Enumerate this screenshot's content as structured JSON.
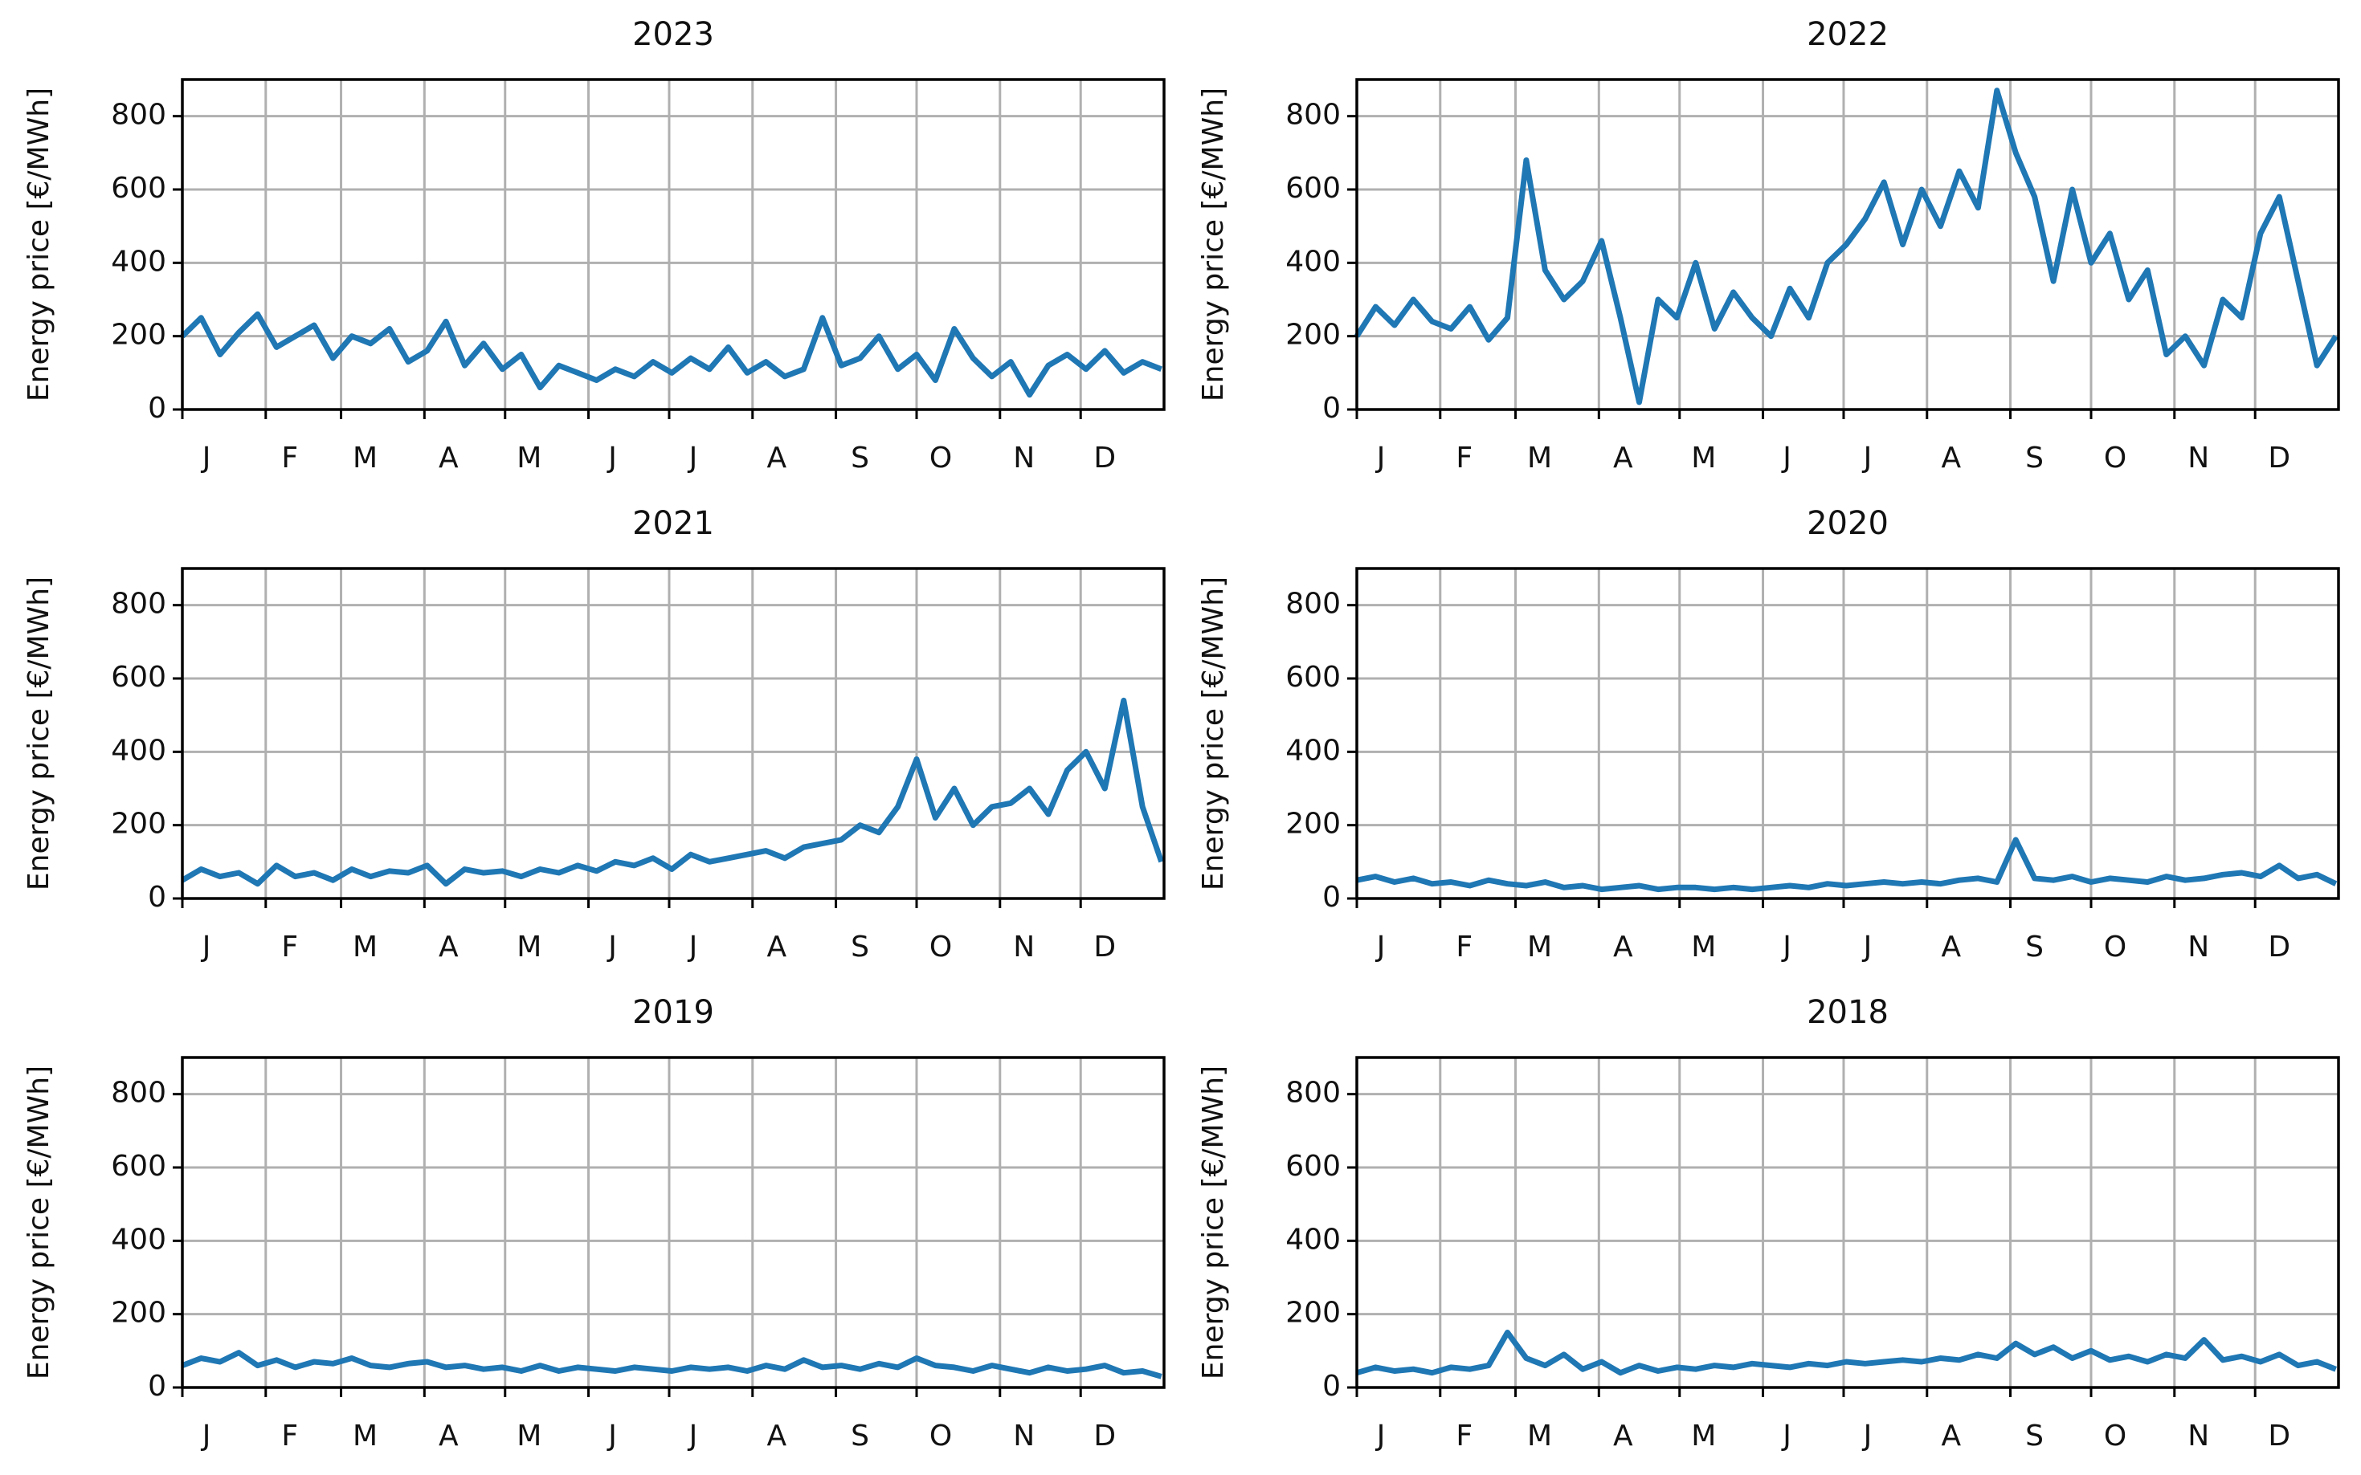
{
  "chart_data": [
    {
      "type": "line",
      "title": "2023",
      "ylabel": "Energy price [€/MWh]",
      "x": [
        1,
        8,
        15,
        22,
        29,
        36,
        43,
        50,
        57,
        64,
        71,
        78,
        85,
        92,
        99,
        106,
        113,
        120,
        127,
        134,
        141,
        148,
        155,
        162,
        169,
        176,
        183,
        190,
        197,
        204,
        211,
        218,
        225,
        232,
        239,
        246,
        253,
        260,
        267,
        274,
        281,
        288,
        295,
        302,
        309,
        316,
        323,
        330,
        337,
        344,
        351,
        358,
        365
      ],
      "series": [
        {
          "color": "#1f77b4",
          "values": [
            200,
            250,
            150,
            210,
            260,
            170,
            200,
            230,
            140,
            200,
            180,
            220,
            130,
            160,
            240,
            120,
            180,
            110,
            150,
            60,
            120,
            100,
            80,
            110,
            90,
            130,
            100,
            140,
            110,
            170,
            100,
            130,
            90,
            110,
            250,
            120,
            140,
            200,
            110,
            150,
            80,
            220,
            140,
            90,
            130,
            40,
            120,
            150,
            110,
            160,
            100,
            130,
            110
          ]
        }
      ],
      "xlim": [
        1,
        366
      ],
      "xticks": [
        {
          "value": 1,
          "label": "J"
        },
        {
          "value": 32,
          "label": "F"
        },
        {
          "value": 60,
          "label": "M"
        },
        {
          "value": 91,
          "label": "A"
        },
        {
          "value": 121,
          "label": "M"
        },
        {
          "value": 152,
          "label": "J"
        },
        {
          "value": 182,
          "label": "J"
        },
        {
          "value": 213,
          "label": "A"
        },
        {
          "value": 244,
          "label": "S"
        },
        {
          "value": 274,
          "label": "O"
        },
        {
          "value": 305,
          "label": "N"
        },
        {
          "value": 335,
          "label": "D"
        }
      ],
      "ylim": [
        0,
        900
      ],
      "yticks": [
        0,
        200,
        400,
        600,
        800
      ],
      "grid": true
    },
    {
      "type": "line",
      "title": "2022",
      "ylabel": "Energy price [€/MWh]",
      "x": [
        1,
        8,
        15,
        22,
        29,
        36,
        43,
        50,
        57,
        64,
        71,
        78,
        85,
        92,
        99,
        106,
        113,
        120,
        127,
        134,
        141,
        148,
        155,
        162,
        169,
        176,
        183,
        190,
        197,
        204,
        211,
        218,
        225,
        232,
        239,
        246,
        253,
        260,
        267,
        274,
        281,
        288,
        295,
        302,
        309,
        316,
        323,
        330,
        337,
        344,
        351,
        358,
        365
      ],
      "series": [
        {
          "color": "#1f77b4",
          "values": [
            200,
            280,
            230,
            300,
            240,
            220,
            280,
            190,
            250,
            680,
            380,
            300,
            350,
            460,
            250,
            20,
            300,
            250,
            400,
            220,
            320,
            250,
            200,
            330,
            250,
            400,
            450,
            520,
            620,
            450,
            600,
            500,
            650,
            550,
            870,
            700,
            580,
            350,
            600,
            400,
            480,
            300,
            380,
            150,
            200,
            120,
            300,
            250,
            480,
            580,
            350,
            120,
            200
          ]
        }
      ],
      "xlim": [
        1,
        366
      ],
      "xticks": [
        {
          "value": 1,
          "label": "J"
        },
        {
          "value": 32,
          "label": "F"
        },
        {
          "value": 60,
          "label": "M"
        },
        {
          "value": 91,
          "label": "A"
        },
        {
          "value": 121,
          "label": "M"
        },
        {
          "value": 152,
          "label": "J"
        },
        {
          "value": 182,
          "label": "J"
        },
        {
          "value": 213,
          "label": "A"
        },
        {
          "value": 244,
          "label": "S"
        },
        {
          "value": 274,
          "label": "O"
        },
        {
          "value": 305,
          "label": "N"
        },
        {
          "value": 335,
          "label": "D"
        }
      ],
      "ylim": [
        0,
        900
      ],
      "yticks": [
        0,
        200,
        400,
        600,
        800
      ],
      "grid": true
    },
    {
      "type": "line",
      "title": "2021",
      "ylabel": "Energy price [€/MWh]",
      "x": [
        1,
        8,
        15,
        22,
        29,
        36,
        43,
        50,
        57,
        64,
        71,
        78,
        85,
        92,
        99,
        106,
        113,
        120,
        127,
        134,
        141,
        148,
        155,
        162,
        169,
        176,
        183,
        190,
        197,
        204,
        211,
        218,
        225,
        232,
        239,
        246,
        253,
        260,
        267,
        274,
        281,
        288,
        295,
        302,
        309,
        316,
        323,
        330,
        337,
        344,
        351,
        358,
        365
      ],
      "series": [
        {
          "color": "#1f77b4",
          "values": [
            50,
            80,
            60,
            70,
            40,
            90,
            60,
            70,
            50,
            80,
            60,
            75,
            70,
            90,
            40,
            80,
            70,
            75,
            60,
            80,
            70,
            90,
            75,
            100,
            90,
            110,
            80,
            120,
            100,
            110,
            120,
            130,
            110,
            140,
            150,
            160,
            200,
            180,
            250,
            380,
            220,
            300,
            200,
            250,
            260,
            300,
            230,
            350,
            400,
            300,
            540,
            250,
            100
          ]
        }
      ],
      "xlim": [
        1,
        366
      ],
      "xticks": [
        {
          "value": 1,
          "label": "J"
        },
        {
          "value": 32,
          "label": "F"
        },
        {
          "value": 60,
          "label": "M"
        },
        {
          "value": 91,
          "label": "A"
        },
        {
          "value": 121,
          "label": "M"
        },
        {
          "value": 152,
          "label": "J"
        },
        {
          "value": 182,
          "label": "J"
        },
        {
          "value": 213,
          "label": "A"
        },
        {
          "value": 244,
          "label": "S"
        },
        {
          "value": 274,
          "label": "O"
        },
        {
          "value": 305,
          "label": "N"
        },
        {
          "value": 335,
          "label": "D"
        }
      ],
      "ylim": [
        0,
        900
      ],
      "yticks": [
        0,
        200,
        400,
        600,
        800
      ],
      "grid": true
    },
    {
      "type": "line",
      "title": "2020",
      "ylabel": "Energy price [€/MWh]",
      "x": [
        1,
        8,
        15,
        22,
        29,
        36,
        43,
        50,
        57,
        64,
        71,
        78,
        85,
        92,
        99,
        106,
        113,
        120,
        127,
        134,
        141,
        148,
        155,
        162,
        169,
        176,
        183,
        190,
        197,
        204,
        211,
        218,
        225,
        232,
        239,
        246,
        253,
        260,
        267,
        274,
        281,
        288,
        295,
        302,
        309,
        316,
        323,
        330,
        337,
        344,
        351,
        358,
        365
      ],
      "series": [
        {
          "color": "#1f77b4",
          "values": [
            50,
            60,
            45,
            55,
            40,
            45,
            35,
            50,
            40,
            35,
            45,
            30,
            35,
            25,
            30,
            35,
            25,
            30,
            30,
            25,
            30,
            25,
            30,
            35,
            30,
            40,
            35,
            40,
            45,
            40,
            45,
            40,
            50,
            55,
            45,
            160,
            55,
            50,
            60,
            45,
            55,
            50,
            45,
            60,
            50,
            55,
            65,
            70,
            60,
            90,
            55,
            65,
            40
          ]
        }
      ],
      "xlim": [
        1,
        366
      ],
      "xticks": [
        {
          "value": 1,
          "label": "J"
        },
        {
          "value": 32,
          "label": "F"
        },
        {
          "value": 60,
          "label": "M"
        },
        {
          "value": 91,
          "label": "A"
        },
        {
          "value": 121,
          "label": "M"
        },
        {
          "value": 152,
          "label": "J"
        },
        {
          "value": 182,
          "label": "J"
        },
        {
          "value": 213,
          "label": "A"
        },
        {
          "value": 244,
          "label": "S"
        },
        {
          "value": 274,
          "label": "O"
        },
        {
          "value": 305,
          "label": "N"
        },
        {
          "value": 335,
          "label": "D"
        }
      ],
      "ylim": [
        0,
        900
      ],
      "yticks": [
        0,
        200,
        400,
        600,
        800
      ],
      "grid": true
    },
    {
      "type": "line",
      "title": "2019",
      "ylabel": "Energy price [€/MWh]",
      "x": [
        1,
        8,
        15,
        22,
        29,
        36,
        43,
        50,
        57,
        64,
        71,
        78,
        85,
        92,
        99,
        106,
        113,
        120,
        127,
        134,
        141,
        148,
        155,
        162,
        169,
        176,
        183,
        190,
        197,
        204,
        211,
        218,
        225,
        232,
        239,
        246,
        253,
        260,
        267,
        274,
        281,
        288,
        295,
        302,
        309,
        316,
        323,
        330,
        337,
        344,
        351,
        358,
        365
      ],
      "series": [
        {
          "color": "#1f77b4",
          "values": [
            60,
            80,
            70,
            95,
            60,
            75,
            55,
            70,
            65,
            80,
            60,
            55,
            65,
            70,
            55,
            60,
            50,
            55,
            45,
            60,
            45,
            55,
            50,
            45,
            55,
            50,
            45,
            55,
            50,
            55,
            45,
            60,
            50,
            75,
            55,
            60,
            50,
            65,
            55,
            80,
            60,
            55,
            45,
            60,
            50,
            40,
            55,
            45,
            50,
            60,
            40,
            45,
            30
          ]
        }
      ],
      "xlim": [
        1,
        366
      ],
      "xticks": [
        {
          "value": 1,
          "label": "J"
        },
        {
          "value": 32,
          "label": "F"
        },
        {
          "value": 60,
          "label": "M"
        },
        {
          "value": 91,
          "label": "A"
        },
        {
          "value": 121,
          "label": "M"
        },
        {
          "value": 152,
          "label": "J"
        },
        {
          "value": 182,
          "label": "J"
        },
        {
          "value": 213,
          "label": "A"
        },
        {
          "value": 244,
          "label": "S"
        },
        {
          "value": 274,
          "label": "O"
        },
        {
          "value": 305,
          "label": "N"
        },
        {
          "value": 335,
          "label": "D"
        }
      ],
      "ylim": [
        0,
        900
      ],
      "yticks": [
        0,
        200,
        400,
        600,
        800
      ],
      "grid": true
    },
    {
      "type": "line",
      "title": "2018",
      "ylabel": "Energy price [€/MWh]",
      "x": [
        1,
        8,
        15,
        22,
        29,
        36,
        43,
        50,
        57,
        64,
        71,
        78,
        85,
        92,
        99,
        106,
        113,
        120,
        127,
        134,
        141,
        148,
        155,
        162,
        169,
        176,
        183,
        190,
        197,
        204,
        211,
        218,
        225,
        232,
        239,
        246,
        253,
        260,
        267,
        274,
        281,
        288,
        295,
        302,
        309,
        316,
        323,
        330,
        337,
        344,
        351,
        358,
        365
      ],
      "series": [
        {
          "color": "#1f77b4",
          "values": [
            40,
            55,
            45,
            50,
            40,
            55,
            50,
            60,
            150,
            80,
            60,
            90,
            50,
            70,
            40,
            60,
            45,
            55,
            50,
            60,
            55,
            65,
            60,
            55,
            65,
            60,
            70,
            65,
            70,
            75,
            70,
            80,
            75,
            90,
            80,
            120,
            90,
            110,
            80,
            100,
            75,
            85,
            70,
            90,
            80,
            130,
            75,
            85,
            70,
            90,
            60,
            70,
            50
          ]
        }
      ],
      "xlim": [
        1,
        366
      ],
      "xticks": [
        {
          "value": 1,
          "label": "J"
        },
        {
          "value": 32,
          "label": "F"
        },
        {
          "value": 60,
          "label": "M"
        },
        {
          "value": 91,
          "label": "A"
        },
        {
          "value": 121,
          "label": "M"
        },
        {
          "value": 152,
          "label": "J"
        },
        {
          "value": 182,
          "label": "J"
        },
        {
          "value": 213,
          "label": "A"
        },
        {
          "value": 244,
          "label": "S"
        },
        {
          "value": 274,
          "label": "O"
        },
        {
          "value": 305,
          "label": "N"
        },
        {
          "value": 335,
          "label": "D"
        }
      ],
      "ylim": [
        0,
        900
      ],
      "yticks": [
        0,
        200,
        400,
        600,
        800
      ],
      "grid": true
    }
  ]
}
